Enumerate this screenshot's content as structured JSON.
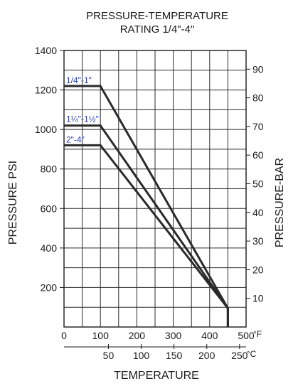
{
  "chart_data": {
    "type": "line",
    "title_line1": "PRESSURE-TEMPERATURE",
    "title_line2": "RATING 1/4\"-4\"",
    "xlabel": "TEMPERATURE",
    "ylabel_left": "PRESSURE PSI",
    "ylabel_right": "PRESSURE-BAR",
    "x_unit_f": "°F",
    "x_unit_c": "°C",
    "xlim": [
      0,
      500
    ],
    "ylim": [
      0,
      1400
    ],
    "x_ticks_f": [
      0,
      100,
      200,
      300,
      400,
      500
    ],
    "x_ticks_c": [
      50,
      100,
      150,
      200,
      250
    ],
    "y_ticks_psi": [
      200,
      400,
      600,
      800,
      1000,
      1200,
      1400
    ],
    "y_ticks_bar": [
      10,
      20,
      30,
      40,
      50,
      60,
      70,
      80,
      90
    ],
    "grid": true,
    "line_color": "#2a2a2a",
    "label_color": "#2b3fb5",
    "series": [
      {
        "name": "1/4\"-1\"",
        "x": [
          0,
          100,
          450,
          450
        ],
        "y": [
          1220,
          1220,
          95,
          0
        ]
      },
      {
        "name": "1¼\"-1½\"",
        "x": [
          0,
          100,
          450,
          450
        ],
        "y": [
          1020,
          1020,
          95,
          0
        ]
      },
      {
        "name": "2\"-4\"",
        "x": [
          0,
          100,
          450,
          450
        ],
        "y": [
          920,
          920,
          95,
          0
        ]
      }
    ]
  }
}
